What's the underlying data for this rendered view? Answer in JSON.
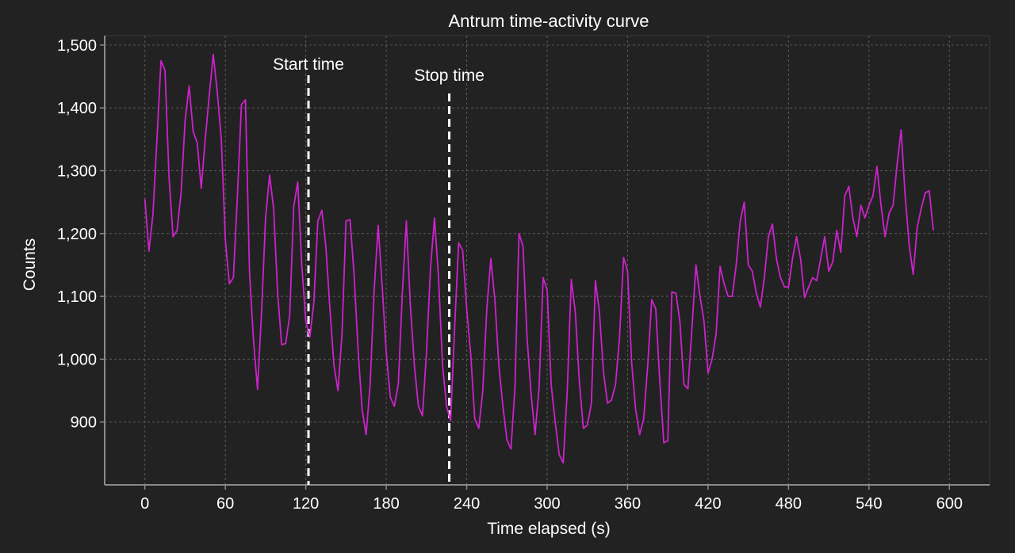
{
  "chart_data": {
    "type": "line",
    "title": "Antrum time-activity curve",
    "xlabel": "Time elapsed (s)",
    "ylabel": "Counts",
    "xlim": [
      -30,
      630
    ],
    "ylim": [
      800,
      1515
    ],
    "x_ticks": [
      0,
      60,
      120,
      180,
      240,
      300,
      360,
      420,
      480,
      540,
      600
    ],
    "x_tick_labels": [
      "0",
      "60",
      "120",
      "180",
      "240",
      "300",
      "360",
      "420",
      "480",
      "540",
      "600"
    ],
    "y_ticks": [
      900,
      1000,
      1100,
      1200,
      1300,
      1400,
      1500
    ],
    "y_tick_labels": [
      "900",
      "1,000",
      "1,100",
      "1,200",
      "1,300",
      "1,400",
      "1,500"
    ],
    "grid": true,
    "series_color": "#cc22cc",
    "markers": [
      {
        "label": "Start time",
        "x": 122
      },
      {
        "label": "Stop time",
        "x": 227
      }
    ],
    "series": [
      {
        "values": [
          1255,
          1172,
          1230,
          1350,
          1475,
          1460,
          1290,
          1195,
          1205,
          1265,
          1380,
          1435,
          1362,
          1345,
          1272,
          1350,
          1420,
          1485,
          1425,
          1350,
          1190,
          1120,
          1130,
          1260,
          1405,
          1413,
          1140,
          1030,
          952,
          1075,
          1225,
          1293,
          1240,
          1105,
          1023,
          1025,
          1070,
          1243,
          1282,
          1150,
          1060,
          1035,
          1090,
          1220,
          1237,
          1178,
          1080,
          990,
          950,
          1040,
          1220,
          1222,
          1135,
          1015,
          920,
          880,
          960,
          1110,
          1213,
          1115,
          1010,
          940,
          925,
          960,
          1105,
          1220,
          1085,
          990,
          925,
          910,
          1010,
          1145,
          1225,
          1130,
          990,
          925,
          902,
          1050,
          1185,
          1173,
          1080,
          1008,
          905,
          890,
          950,
          1080,
          1160,
          1095,
          990,
          925,
          872,
          857,
          955,
          1200,
          1180,
          1035,
          945,
          880,
          955,
          1130,
          1110,
          960,
          900,
          848,
          835,
          950,
          1127,
          1075,
          965,
          890,
          895,
          930,
          1125,
          1075,
          980,
          930,
          935,
          960,
          1035,
          1162,
          1140,
          995,
          920,
          880,
          905,
          990,
          1095,
          1080,
          965,
          867,
          870,
          1107,
          1105,
          1060,
          960,
          953,
          1050,
          1150,
          1100,
          1060,
          978,
          1000,
          1040,
          1148,
          1120,
          1100,
          1100,
          1150,
          1220,
          1250,
          1150,
          1140,
          1105,
          1083,
          1130,
          1195,
          1215,
          1160,
          1130,
          1115,
          1115,
          1160,
          1195,
          1160,
          1098,
          1115,
          1130,
          1125,
          1160,
          1195,
          1140,
          1155,
          1205,
          1170,
          1260,
          1275,
          1225,
          1195,
          1245,
          1225,
          1245,
          1260,
          1307,
          1245,
          1195,
          1232,
          1245,
          1310,
          1365,
          1260,
          1182,
          1135,
          1210,
          1240,
          1265,
          1268,
          1205
        ]
      }
    ]
  }
}
